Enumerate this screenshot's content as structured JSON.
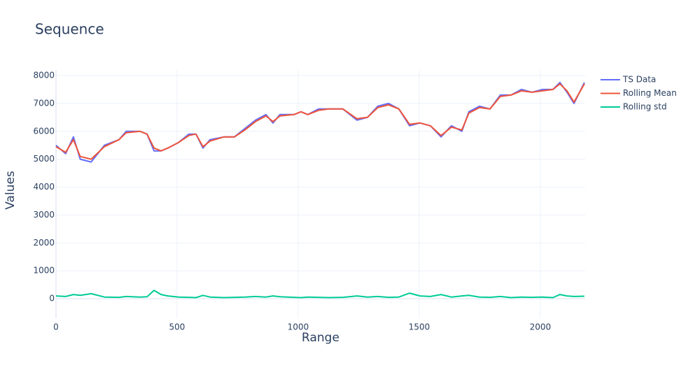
{
  "chart_data": {
    "type": "line",
    "title": "Sequence",
    "x_label": "Range",
    "y_label": "Values",
    "x": [
      0,
      40,
      72,
      100,
      145,
      200,
      260,
      290,
      347,
      376,
      405,
      434,
      462,
      506,
      549,
      578,
      607,
      636,
      694,
      737,
      780,
      824,
      867,
      896,
      925,
      983,
      1012,
      1040,
      1084,
      1127,
      1185,
      1243,
      1286,
      1329,
      1373,
      1416,
      1460,
      1503,
      1546,
      1590,
      1633,
      1676,
      1705,
      1749,
      1792,
      1835,
      1879,
      1922,
      1965,
      2009,
      2052,
      2081,
      2110,
      2139,
      2182
    ],
    "series": [
      {
        "name": "TS Data",
        "color": "#636efa",
        "values": [
          5500,
          5200,
          5800,
          5000,
          4900,
          5500,
          5700,
          6000,
          6000,
          5900,
          5300,
          5300,
          5400,
          5600,
          5900,
          5900,
          5400,
          5700,
          5800,
          5800,
          6100,
          6400,
          6600,
          6300,
          6600,
          6600,
          6700,
          6600,
          6800,
          6800,
          6800,
          6400,
          6500,
          6900,
          7000,
          6800,
          6200,
          6300,
          6200,
          5800,
          6200,
          6000,
          6700,
          6900,
          6800,
          7300,
          7300,
          7500,
          7400,
          7500,
          7500,
          7750,
          7400,
          7000,
          7750
        ]
      },
      {
        "name": "Rolling Mean",
        "color": "#ef553b",
        "values": [
          5450,
          5250,
          5700,
          5100,
          5000,
          5450,
          5700,
          5950,
          6000,
          5900,
          5400,
          5300,
          5400,
          5600,
          5850,
          5900,
          5450,
          5650,
          5800,
          5800,
          6050,
          6350,
          6550,
          6350,
          6550,
          6600,
          6700,
          6600,
          6750,
          6800,
          6800,
          6450,
          6500,
          6850,
          6950,
          6800,
          6250,
          6300,
          6200,
          5850,
          6150,
          6050,
          6650,
          6850,
          6800,
          7250,
          7300,
          7450,
          7400,
          7450,
          7500,
          7700,
          7450,
          7050,
          7700
        ]
      },
      {
        "name": "Rolling std",
        "color": "#00cc96",
        "values": [
          100,
          80,
          150,
          120,
          180,
          60,
          50,
          80,
          60,
          70,
          300,
          150,
          100,
          60,
          50,
          40,
          120,
          60,
          40,
          50,
          60,
          80,
          60,
          100,
          70,
          50,
          40,
          60,
          50,
          40,
          50,
          100,
          60,
          80,
          50,
          60,
          200,
          100,
          80,
          150,
          60,
          100,
          120,
          60,
          50,
          80,
          40,
          60,
          50,
          60,
          40,
          150,
          100,
          80,
          90
        ]
      }
    ],
    "xlim": [
      0,
      2185
    ],
    "ylim": [
      -700,
      8200
    ],
    "xticks": [
      0,
      500,
      1000,
      1500,
      2000
    ],
    "yticks": [
      0,
      1000,
      2000,
      3000,
      4000,
      5000,
      6000,
      7000,
      8000
    ],
    "grid": true,
    "legend": "right"
  }
}
